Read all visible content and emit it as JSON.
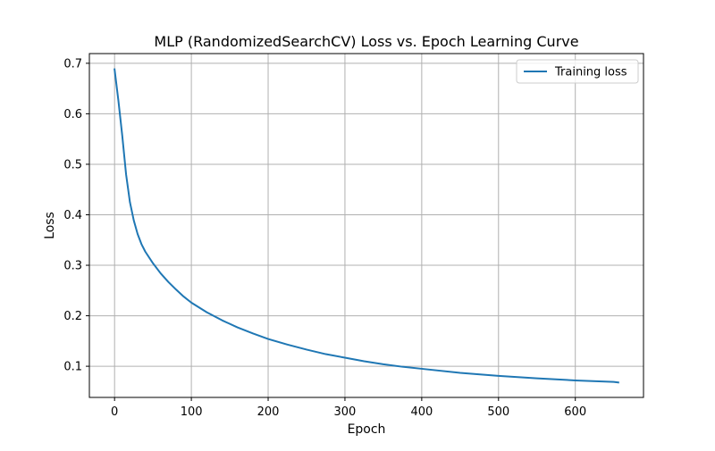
{
  "chart_data": {
    "type": "line",
    "title": "MLP (RandomizedSearchCV) Loss vs. Epoch Learning Curve",
    "xlabel": "Epoch",
    "ylabel": "Loss",
    "xlim": [
      -32.8,
      688.8
    ],
    "ylim": [
      0.0383,
      0.7192
    ],
    "xticks": [
      0,
      100,
      200,
      300,
      400,
      500,
      600
    ],
    "yticks": [
      0.1,
      0.2,
      0.3,
      0.4,
      0.5,
      0.6,
      0.7
    ],
    "xtick_labels": [
      "0",
      "100",
      "200",
      "300",
      "400",
      "500",
      "600"
    ],
    "ytick_labels": [
      "0.1",
      "0.2",
      "0.3",
      "0.4",
      "0.5",
      "0.6",
      "0.7"
    ],
    "grid": true,
    "legend_position": "top-right",
    "series": [
      {
        "name": "Training loss",
        "color": "#1f77b4",
        "x": [
          0,
          5,
          10,
          15,
          20,
          25,
          30,
          35,
          40,
          50,
          60,
          70,
          80,
          90,
          100,
          120,
          140,
          160,
          180,
          200,
          225,
          250,
          275,
          300,
          325,
          350,
          375,
          400,
          450,
          500,
          550,
          600,
          650,
          656
        ],
        "y": [
          0.688,
          0.626,
          0.557,
          0.48,
          0.425,
          0.389,
          0.362,
          0.342,
          0.327,
          0.304,
          0.284,
          0.267,
          0.252,
          0.238,
          0.226,
          0.207,
          0.191,
          0.177,
          0.165,
          0.154,
          0.143,
          0.133,
          0.124,
          0.117,
          0.11,
          0.104,
          0.099,
          0.095,
          0.087,
          0.081,
          0.076,
          0.072,
          0.069,
          0.068
        ]
      }
    ]
  }
}
